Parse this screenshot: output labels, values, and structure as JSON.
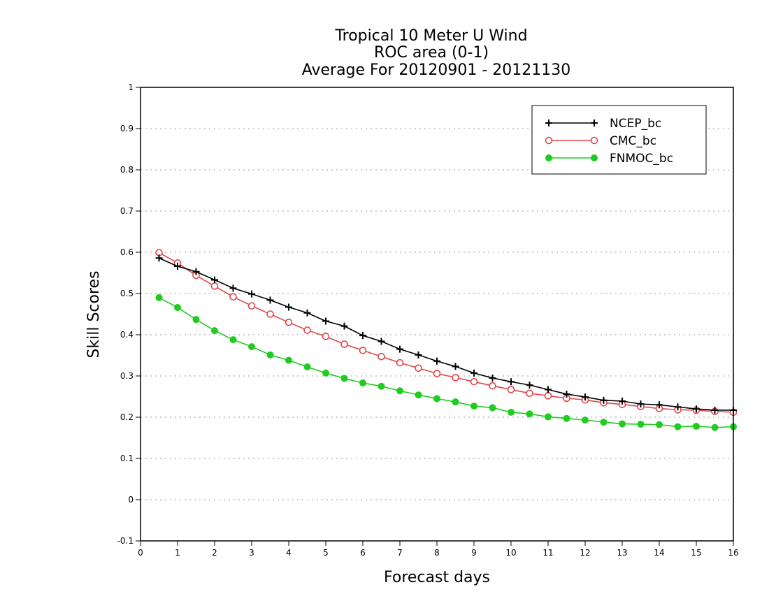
{
  "chart_data": {
    "type": "line",
    "title_lines": [
      "Tropical 10 Meter U Wind",
      "ROC area (0-1)",
      "Average For 20120901 - 20121130"
    ],
    "xlabel": "Forecast days",
    "ylabel": "Skill Scores",
    "xlim": [
      0,
      16
    ],
    "ylim": [
      -0.1,
      1
    ],
    "x_ticks": [
      0,
      1,
      2,
      3,
      4,
      5,
      6,
      7,
      8,
      9,
      10,
      11,
      12,
      13,
      14,
      15,
      16
    ],
    "y_ticks": [
      -0.1,
      0,
      0.1,
      0.2,
      0.3,
      0.4,
      0.5,
      0.6,
      0.7,
      0.8,
      0.9,
      1
    ],
    "y_tick_labels": [
      "-0.1",
      "0",
      "0.1",
      "0.2",
      "0.3",
      "0.4",
      "0.5",
      "0.6",
      "0.7",
      "0.8",
      "0.9",
      "1"
    ],
    "grid": "horizontal dotted",
    "legend_position": "top-right",
    "x": [
      0.5,
      1,
      1.5,
      2,
      2.5,
      3,
      3.5,
      4,
      4.5,
      5,
      5.5,
      6,
      6.5,
      7,
      7.5,
      8,
      8.5,
      9,
      9.5,
      10,
      10.5,
      11,
      11.5,
      12,
      12.5,
      13,
      13.5,
      14,
      14.5,
      15,
      15.5,
      16
    ],
    "series": [
      {
        "name": "NCEP_bc",
        "color": "#000000",
        "marker": "plus",
        "values": [
          0.586,
          0.566,
          0.553,
          0.533,
          0.513,
          0.499,
          0.484,
          0.467,
          0.453,
          0.433,
          0.421,
          0.398,
          0.384,
          0.365,
          0.351,
          0.336,
          0.323,
          0.307,
          0.295,
          0.286,
          0.278,
          0.267,
          0.256,
          0.249,
          0.241,
          0.239,
          0.232,
          0.23,
          0.225,
          0.22,
          0.217,
          0.217
        ]
      },
      {
        "name": "CMC_bc",
        "color": "#e0474c",
        "marker": "open-circle",
        "values": [
          0.599,
          0.574,
          0.544,
          0.518,
          0.492,
          0.47,
          0.45,
          0.43,
          0.411,
          0.396,
          0.377,
          0.362,
          0.347,
          0.332,
          0.319,
          0.306,
          0.296,
          0.286,
          0.276,
          0.267,
          0.258,
          0.252,
          0.246,
          0.242,
          0.235,
          0.231,
          0.226,
          0.221,
          0.218,
          0.217,
          0.214,
          0.212
        ]
      },
      {
        "name": "FNMOC_bc",
        "color": "#1fcc1f",
        "marker": "filled-circle",
        "values": [
          0.49,
          0.466,
          0.437,
          0.41,
          0.388,
          0.371,
          0.351,
          0.338,
          0.322,
          0.307,
          0.294,
          0.283,
          0.275,
          0.264,
          0.254,
          0.245,
          0.237,
          0.227,
          0.223,
          0.212,
          0.208,
          0.201,
          0.197,
          0.193,
          0.188,
          0.184,
          0.183,
          0.182,
          0.177,
          0.178,
          0.175,
          0.177
        ]
      }
    ]
  }
}
